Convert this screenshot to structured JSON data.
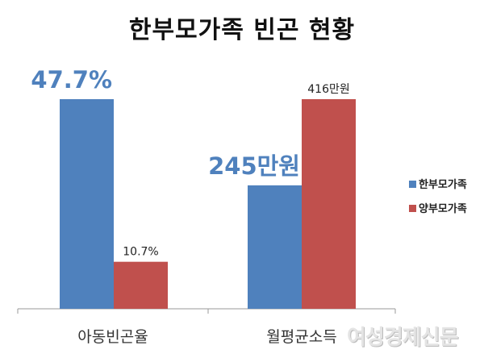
{
  "chart_data": {
    "type": "bar",
    "title": "한부모가족 빈곤 현황",
    "categories": [
      "아동빈곤율",
      "월평균소득"
    ],
    "series": [
      {
        "name": "한부모가족",
        "color": "#4f81bd",
        "values": [
          47.7,
          245
        ],
        "labels": [
          "47.7%",
          "245만원"
        ]
      },
      {
        "name": "양부모가족",
        "color": "#c0504d",
        "values": [
          10.7,
          416
        ],
        "labels": [
          "10.7%",
          "416만원"
        ]
      }
    ],
    "units": [
      "%",
      "만원"
    ],
    "grid": false,
    "legend": "right"
  },
  "watermark": "여성경제신문"
}
